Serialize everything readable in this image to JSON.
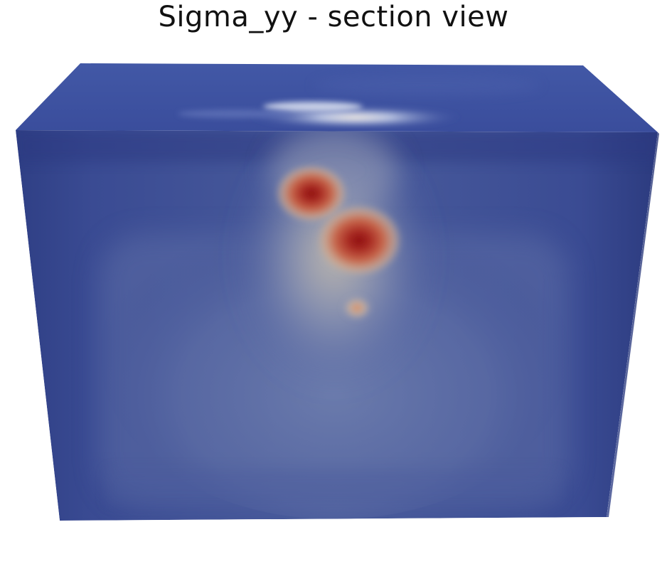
{
  "title": "Sigma_yy - section view",
  "colormap": {
    "low": "#3b4c9a",
    "mid": "#c9b8a0",
    "high": "#a91d1d"
  },
  "hotspots": [
    {
      "name": "stress-concentration-upper",
      "level": 1.0
    },
    {
      "name": "stress-concentration-lower",
      "level": 0.95
    },
    {
      "name": "stress-concentration-small",
      "level": 0.55
    }
  ]
}
